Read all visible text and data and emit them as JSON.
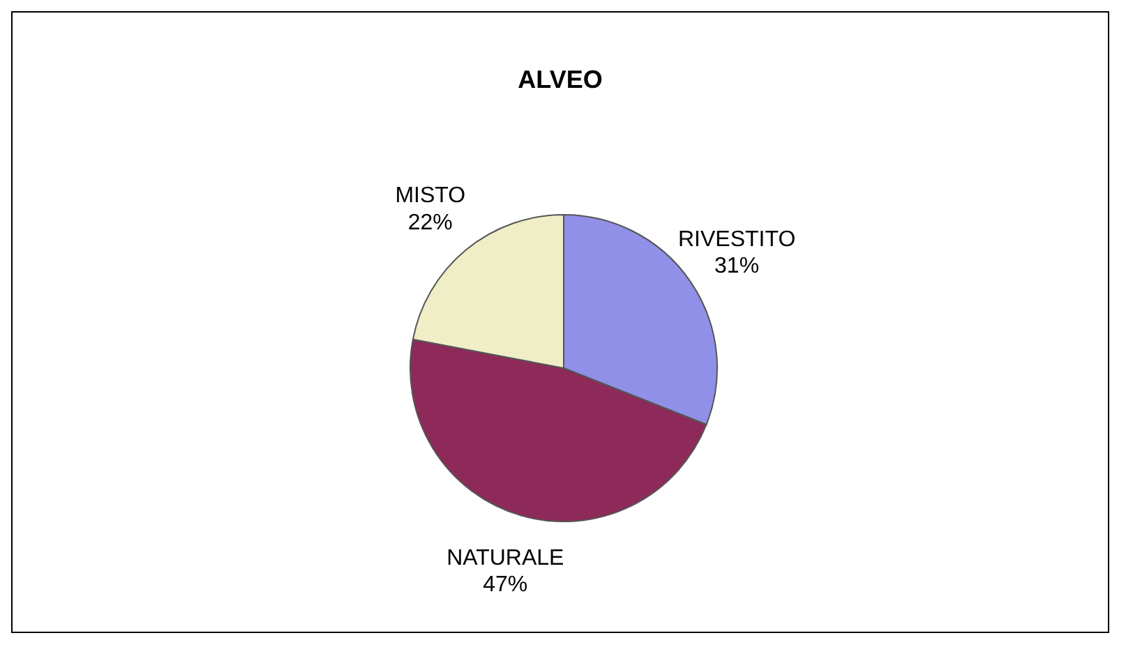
{
  "chart_data": {
    "type": "pie",
    "title": "ALVEO",
    "categories": [
      "RIVESTITO",
      "NATURALE",
      "MISTO"
    ],
    "values": [
      31,
      47,
      22
    ],
    "value_labels": [
      "31%",
      "47%",
      "22%"
    ],
    "colors": [
      "#9090e8",
      "#8e2a5a",
      "#efeec6"
    ]
  }
}
